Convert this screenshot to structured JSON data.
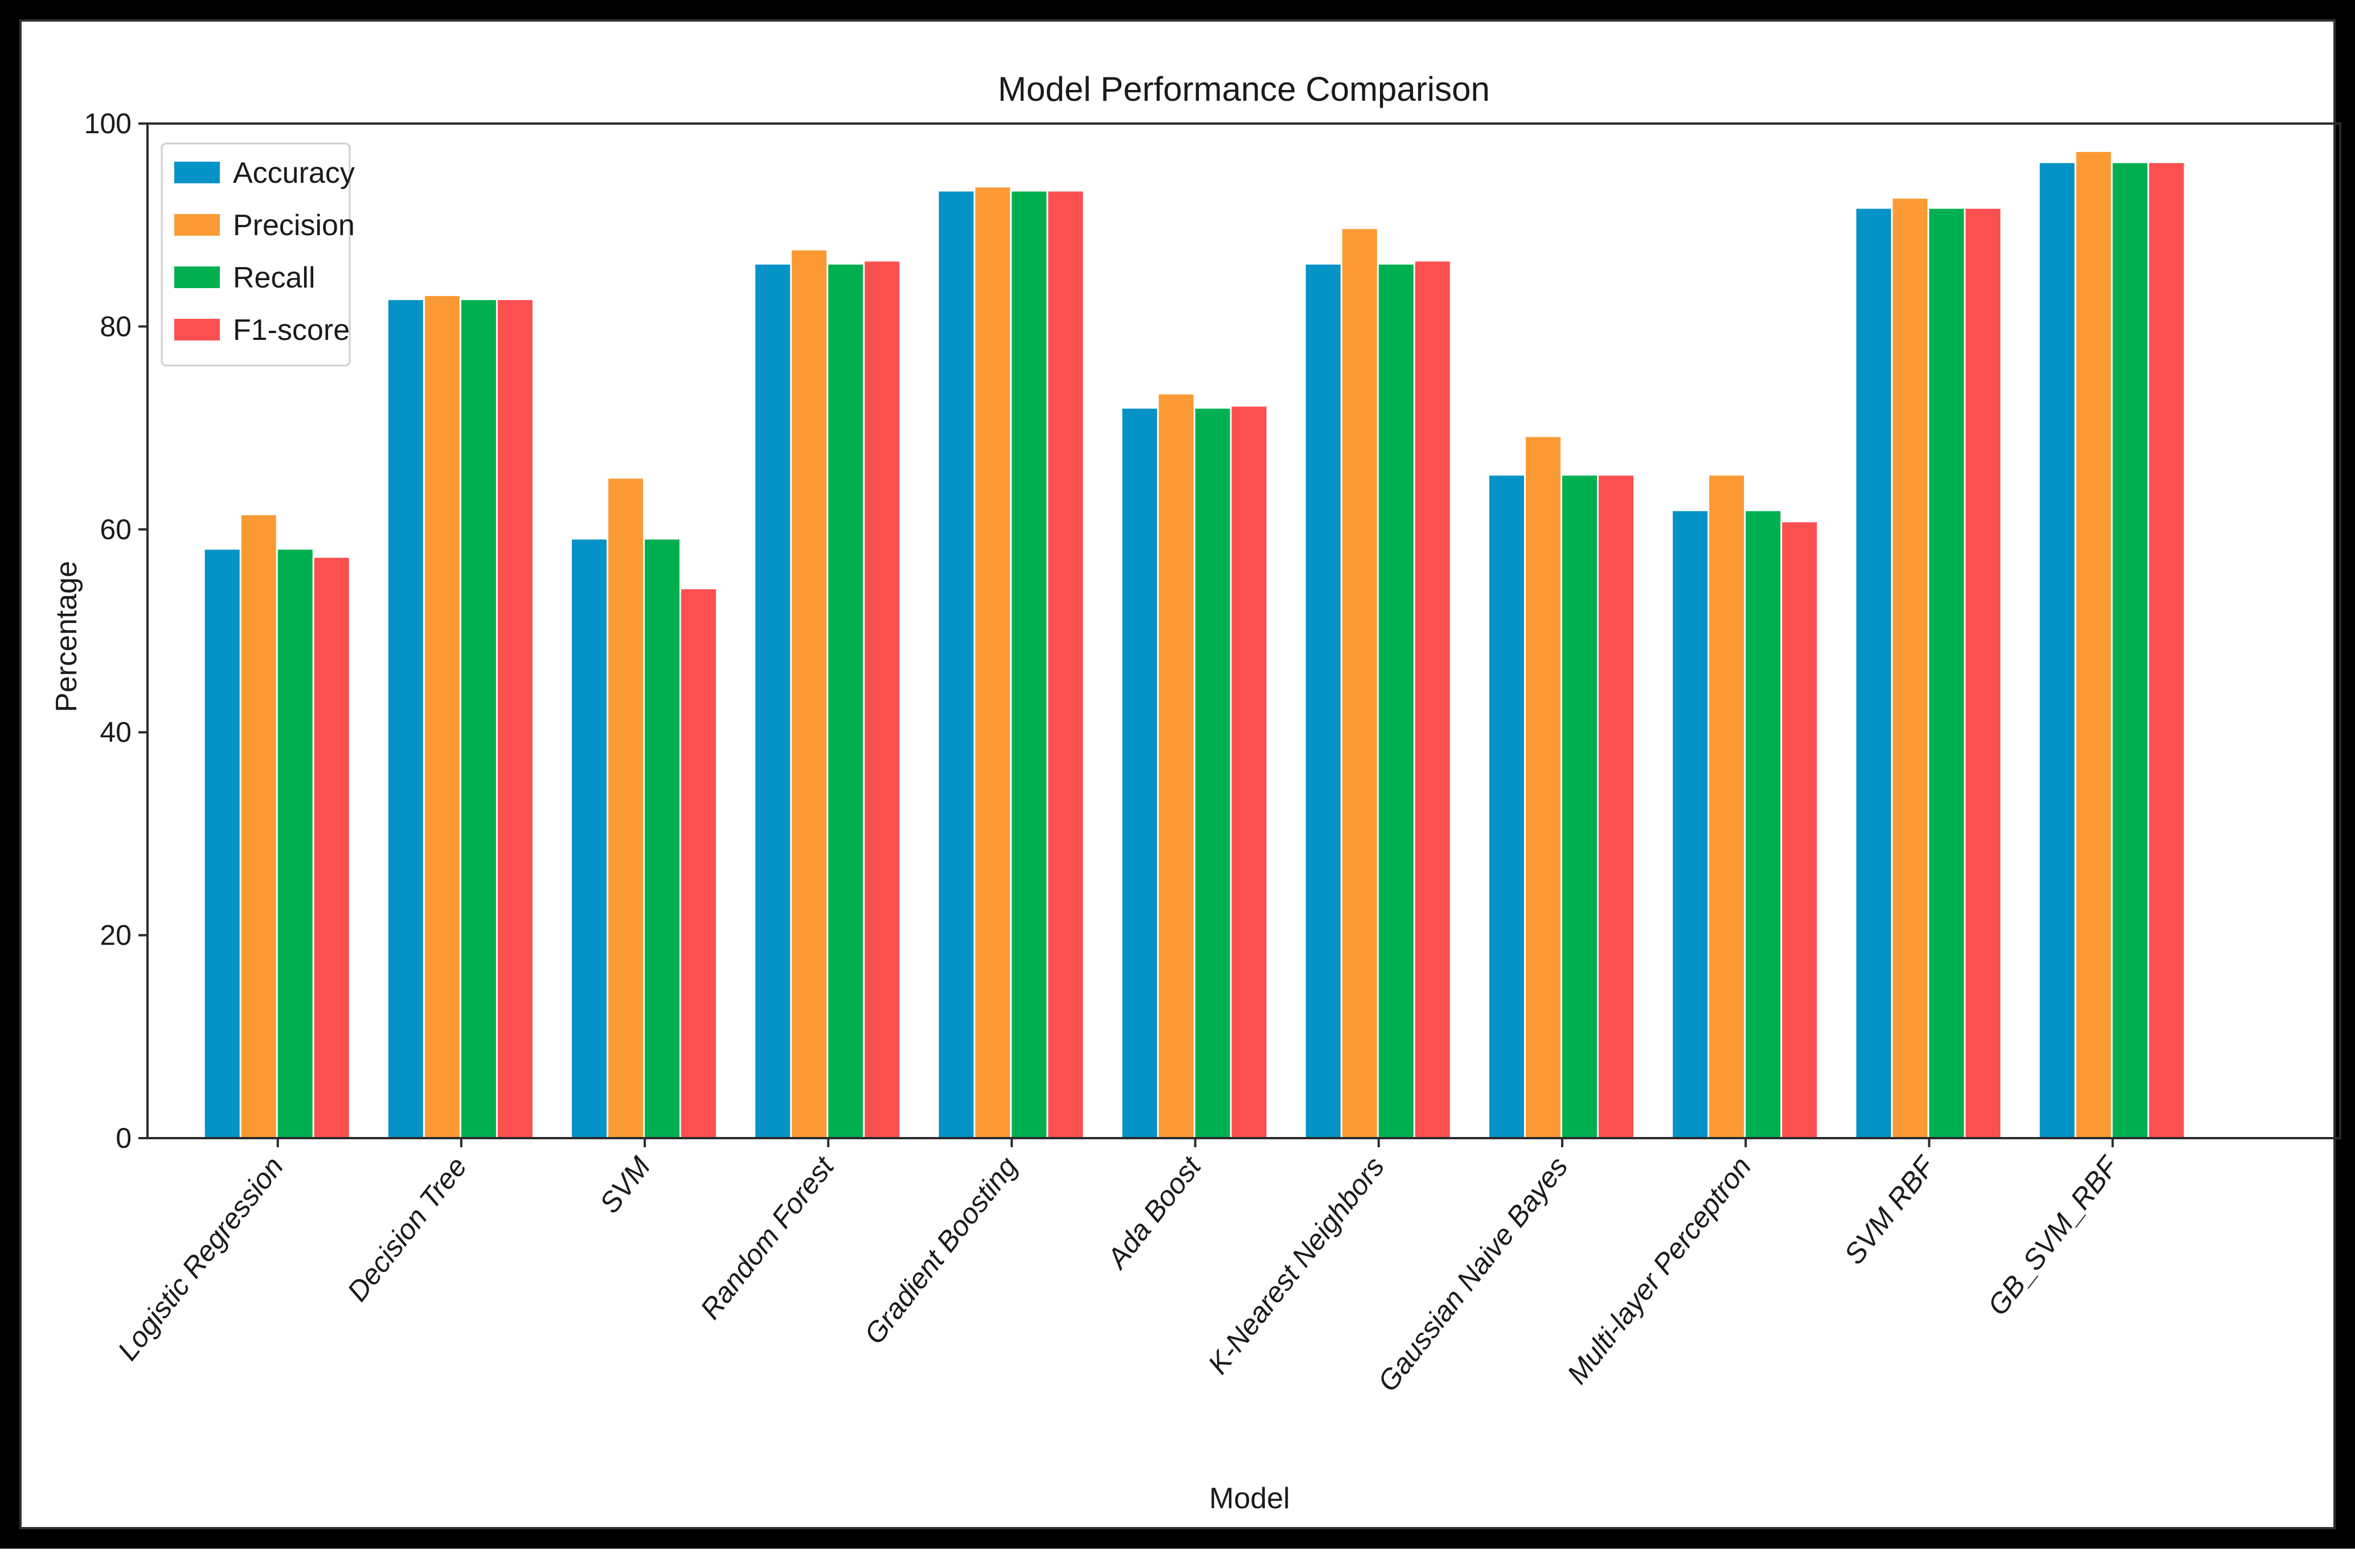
{
  "chart_data": {
    "type": "bar",
    "title": "Model Performance Comparison",
    "xlabel": "Model",
    "ylabel": "Percentage",
    "ylim": [
      0,
      100
    ],
    "yticks": [
      0,
      20,
      40,
      60,
      80,
      100
    ],
    "grid": false,
    "legend_position": "top-left",
    "categories": [
      "Logistic Regression",
      "Decision Tree",
      "SVM",
      "Random Forest",
      "Gradient Boosting",
      "Ada Boost",
      "K-Nearest Neighbors",
      "Gaussian Naive Bayes",
      "Multi-layer Perceptron",
      "SVM RBF",
      "GB_SVM_RBF"
    ],
    "series": [
      {
        "name": "Accuracy",
        "color": "#0492c7",
        "values": [
          58.0,
          82.6,
          59.0,
          86.1,
          93.3,
          71.9,
          86.1,
          65.3,
          61.8,
          91.6,
          96.1
        ]
      },
      {
        "name": "Precision",
        "color": "#fb9a34",
        "values": [
          61.4,
          83.0,
          65.0,
          87.5,
          93.7,
          73.3,
          89.6,
          69.1,
          65.3,
          92.6,
          97.2
        ]
      },
      {
        "name": "Recall",
        "color": "#00b050",
        "values": [
          58.0,
          82.6,
          59.0,
          86.1,
          93.3,
          71.9,
          86.1,
          65.3,
          61.8,
          91.6,
          96.1
        ]
      },
      {
        "name": "F1-score",
        "color": "#fc4f4f",
        "values": [
          57.2,
          82.6,
          54.1,
          86.4,
          93.3,
          72.1,
          86.4,
          65.3,
          60.7,
          91.6,
          96.1
        ]
      }
    ]
  }
}
